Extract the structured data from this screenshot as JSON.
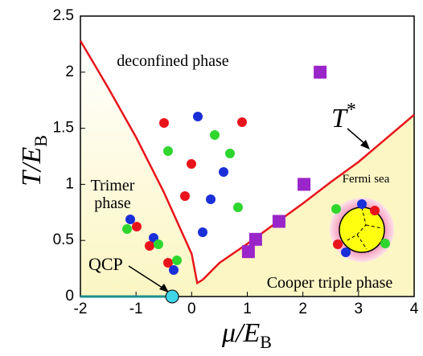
{
  "chart_data": {
    "type": "phase-diagram",
    "xlabel": {
      "main": "μ/E",
      "sub": "B"
    },
    "ylabel": {
      "main": "T/E",
      "sub": "B"
    },
    "xlim": [
      -2,
      4
    ],
    "xticks": [
      -2,
      -1,
      0,
      1,
      2,
      3,
      4
    ],
    "ylim": [
      0,
      2.5
    ],
    "yticks": [
      0,
      0.5,
      1,
      1.5,
      2,
      2.5
    ],
    "crossover": {
      "name": "T",
      "sup": "*",
      "color": "#e8141b",
      "x": [
        -2,
        -1.5,
        -1,
        -0.5,
        0,
        0.1,
        0.2,
        0.5,
        1,
        1.5,
        2,
        2.5,
        3,
        3.5,
        4
      ],
      "values": [
        2.28,
        1.86,
        1.42,
        0.93,
        0.38,
        0.12,
        0.15,
        0.3,
        0.47,
        0.65,
        0.83,
        1.02,
        1.2,
        1.41,
        1.62
      ]
    },
    "squares": {
      "color": "#9a25c8",
      "x": [
        2.31,
        2.02,
        1.57,
        1.15,
        1.02
      ],
      "values": [
        2.0,
        1.0,
        0.67,
        0.51,
        0.4
      ]
    },
    "qcp": {
      "label": "QCP",
      "x": -0.35,
      "value": 0,
      "color": "#3fd6e6"
    },
    "labels": {
      "deconfined": "deconfined phase",
      "trimer1": "Trimer",
      "trimer2": "phase",
      "cooper": "Cooper triple phase",
      "fermi": "Fermi sea"
    }
  }
}
